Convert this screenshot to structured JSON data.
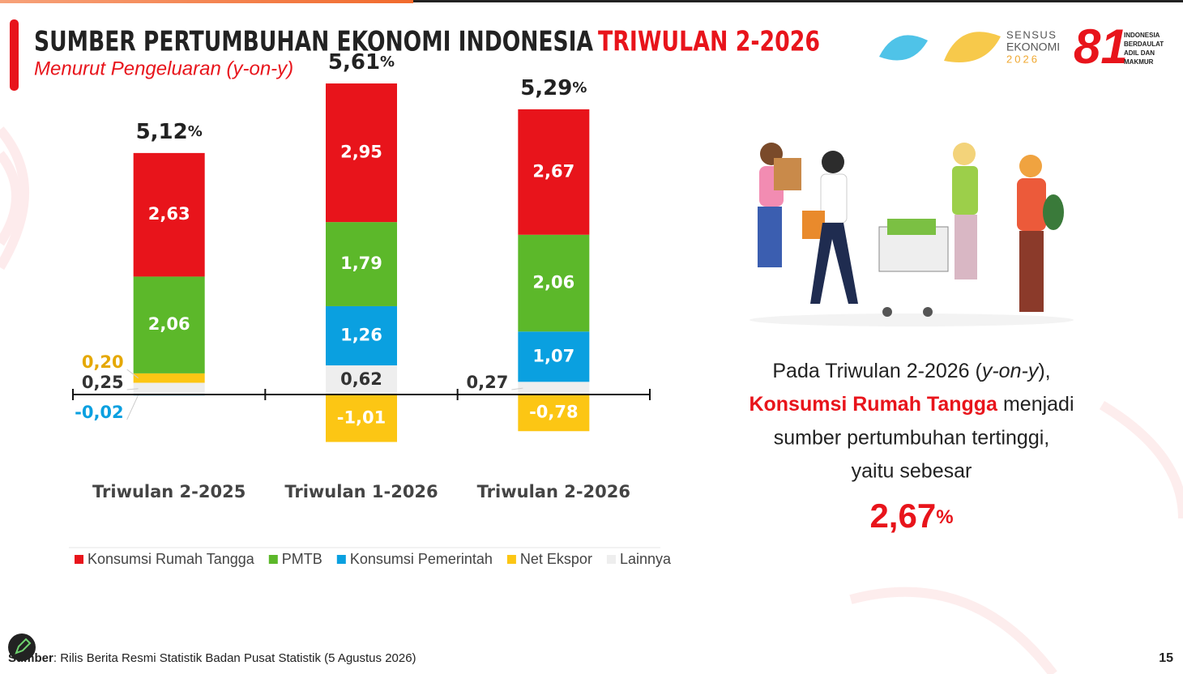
{
  "header": {
    "title": "SUMBER PERTUMBUHAN EKONOMI INDONESIA",
    "title_highlight": "TRIWULAN 2-2026",
    "subtitle": "Menurut Pengeluaran (y-on-y)"
  },
  "logos": {
    "sensus": [
      "SENSUS",
      "EKONOMI",
      "2026"
    ],
    "anniversary": [
      "INDONESIA",
      "BERDAULAT",
      "ADIL DAN",
      "MAKMUR"
    ]
  },
  "chart_data": {
    "type": "stacked_bar",
    "categories": [
      "Triwulan 2-2025",
      "Triwulan 1-2026",
      "Triwulan 2-2026"
    ],
    "series": [
      {
        "name": "Konsumsi Rumah Tangga",
        "color": "#e8141b",
        "values": [
          2.63,
          2.95,
          2.67
        ],
        "value_labels": [
          "2,63",
          "2,95",
          "2,67"
        ]
      },
      {
        "name": "PMTB",
        "color": "#5cb82a",
        "values": [
          2.06,
          1.79,
          2.06
        ],
        "value_labels": [
          "2,06",
          "1,79",
          "2,06"
        ]
      },
      {
        "name": "Konsumsi Pemerintah",
        "color": "#0aa0e0",
        "values": [
          -0.02,
          1.26,
          1.07
        ],
        "value_labels": [
          "-0,02",
          "1,26",
          "1,07"
        ]
      },
      {
        "name": "Net Ekspor",
        "color": "#fcc614",
        "values": [
          0.2,
          -1.01,
          -0.78
        ],
        "value_labels": [
          "0,20",
          "-1,01",
          "-0,78"
        ]
      },
      {
        "name": "Lainnya",
        "color": "#eeeeee",
        "values": [
          0.25,
          0.62,
          0.27
        ],
        "value_labels": [
          "0,25",
          "0,62",
          "0,27"
        ]
      }
    ],
    "totals": [
      5.12,
      5.61,
      5.29
    ],
    "total_labels": [
      "5,12",
      "5,61",
      "5,29"
    ],
    "total_unit": "%"
  },
  "summary": {
    "line1": "Pada Triwulan 2-2026 (",
    "line1_italic": "y-on-y",
    "line1_end": "),",
    "highlight": "Konsumsi Rumah Tangga",
    "line2_end": "menjadi",
    "line3": "sumber pertumbuhan tertinggi,",
    "line4": "yaitu sebesar",
    "value": "2,67",
    "unit": "%"
  },
  "footer": {
    "source_label": "Sumber",
    "source": ": Rilis Berita Resmi Statistik Badan Pusat Statistik (5 Agustus 2026)",
    "page": "15"
  }
}
